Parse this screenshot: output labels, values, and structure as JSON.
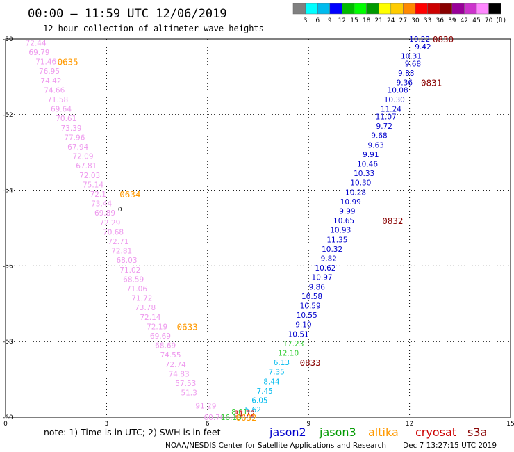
{
  "header": {
    "title": "00:00 – 11:59 UTC 12/06/2019",
    "subtitle": "12 hour collection of altimeter wave heights"
  },
  "colorbar": {
    "colors": [
      "#808080",
      "#00ffff",
      "#00bbee",
      "#0000ff",
      "#00bb00",
      "#00ff00",
      "#009900",
      "#ffff00",
      "#ffcc00",
      "#ff8800",
      "#ff0000",
      "#cc0000",
      "#880000",
      "#990099",
      "#cc33cc",
      "#ff88ff",
      "#000000"
    ],
    "labels": [
      "3",
      "6",
      "9",
      "12",
      "15",
      "18",
      "21",
      "24",
      "27",
      "30",
      "33",
      "36",
      "39",
      "42",
      "45",
      "70",
      "(ft)"
    ]
  },
  "footer": {
    "note": "note:  1) Time is in UTC;  2) SWH is in feet",
    "credit": "NOAA/NESDIS Center for Satellite Applications and Research",
    "timestamp": "Dec  7 13:27:15 UTC 2019"
  },
  "satellites": [
    {
      "name": "jason2",
      "color": "#0000cc"
    },
    {
      "name": "jason3",
      "color": "#009900"
    },
    {
      "name": "altika",
      "color": "#ff9900"
    },
    {
      "name": "cryosat",
      "color": "#cc0000"
    },
    {
      "name": "s3a",
      "color": "#880000"
    }
  ],
  "chart_data": {
    "type": "scatter",
    "xlim": [
      0,
      15
    ],
    "ylim": [
      -60,
      -50
    ],
    "x_ticks": [
      0,
      3,
      6,
      9,
      12,
      15
    ],
    "y_ticks": [
      -50,
      -52,
      -54,
      -56,
      -58,
      -60
    ],
    "grid": true,
    "point_sets": [
      {
        "color": "#ee99ee",
        "points": [
          [
            0.9,
            -50.1,
            "72.44"
          ],
          [
            1.0,
            -50.35,
            "69.79"
          ],
          [
            1.2,
            -50.6,
            "71.46"
          ],
          [
            1.3,
            -50.85,
            "76.95"
          ],
          [
            1.35,
            -51.1,
            "74.42"
          ],
          [
            1.45,
            -51.35,
            "74.66"
          ],
          [
            1.55,
            -51.6,
            "71.58"
          ],
          [
            1.65,
            -51.85,
            "69.64"
          ],
          [
            1.8,
            -52.1,
            "70.61"
          ],
          [
            1.95,
            -52.35,
            "73.39"
          ],
          [
            2.05,
            -52.6,
            "77.96"
          ],
          [
            2.15,
            -52.85,
            "67.94"
          ],
          [
            2.3,
            -53.1,
            "72.09"
          ],
          [
            2.4,
            -53.35,
            "67.81"
          ],
          [
            2.5,
            -53.6,
            "72.03"
          ],
          [
            2.6,
            -53.85,
            "75.14"
          ],
          [
            2.75,
            -54.1,
            "72.1"
          ],
          [
            2.85,
            -54.35,
            "73.44"
          ],
          [
            2.95,
            -54.6,
            "69.89"
          ],
          [
            3.1,
            -54.85,
            "72.29"
          ],
          [
            3.2,
            -55.1,
            "70.68"
          ],
          [
            3.35,
            -55.35,
            "72.71"
          ],
          [
            3.45,
            -55.6,
            "72.81"
          ],
          [
            3.6,
            -55.85,
            "68.03"
          ],
          [
            3.7,
            -56.1,
            "71.02"
          ],
          [
            3.8,
            -56.35,
            "68.59"
          ],
          [
            3.9,
            -56.6,
            "71.06"
          ],
          [
            4.05,
            -56.85,
            "71.72"
          ],
          [
            4.15,
            -57.1,
            "73.78"
          ],
          [
            4.3,
            -57.35,
            "72.14"
          ],
          [
            4.5,
            -57.6,
            "72.19"
          ],
          [
            4.6,
            -57.85,
            "69.69"
          ],
          [
            4.75,
            -58.1,
            "68.69"
          ],
          [
            4.9,
            -58.35,
            "74.55"
          ],
          [
            5.05,
            -58.6,
            "72.74"
          ],
          [
            5.15,
            -58.85,
            "74.83"
          ],
          [
            5.35,
            -59.1,
            "57.53"
          ],
          [
            5.45,
            -59.35,
            "51.3"
          ],
          [
            5.95,
            -59.7,
            "91.29"
          ],
          [
            6.2,
            -60.0,
            "60.70"
          ]
        ]
      },
      {
        "color": "#0000cc",
        "points": [
          [
            12.3,
            -50.0,
            "10.22"
          ],
          [
            12.4,
            -50.2,
            "9.42"
          ],
          [
            12.05,
            -50.45,
            "10.31"
          ],
          [
            12.1,
            -50.65,
            "9.68"
          ],
          [
            11.9,
            -50.9,
            "9.88"
          ],
          [
            11.85,
            -51.15,
            "9.36"
          ],
          [
            11.65,
            -51.35,
            "10.08"
          ],
          [
            11.55,
            -51.6,
            "10.30"
          ],
          [
            11.45,
            -51.85,
            "11.24"
          ],
          [
            11.3,
            -52.05,
            "11.07"
          ],
          [
            11.25,
            -52.3,
            "9.72"
          ],
          [
            11.1,
            -52.55,
            "9.68"
          ],
          [
            11.0,
            -52.8,
            "9.63"
          ],
          [
            10.85,
            -53.05,
            "9.91"
          ],
          [
            10.75,
            -53.3,
            "10.46"
          ],
          [
            10.65,
            -53.55,
            "10.33"
          ],
          [
            10.55,
            -53.8,
            "10.30"
          ],
          [
            10.4,
            -54.05,
            "10.28"
          ],
          [
            10.25,
            -54.3,
            "10.99"
          ],
          [
            10.15,
            -54.55,
            "9.99"
          ],
          [
            10.05,
            -54.8,
            "10.65"
          ],
          [
            9.95,
            -55.05,
            "10.93"
          ],
          [
            9.85,
            -55.3,
            "11.35"
          ],
          [
            9.7,
            -55.55,
            "10.32"
          ],
          [
            9.6,
            -55.8,
            "9.82"
          ],
          [
            9.5,
            -56.05,
            "10.62"
          ],
          [
            9.4,
            -56.3,
            "10.97"
          ],
          [
            9.25,
            -56.55,
            "9.86"
          ],
          [
            9.1,
            -56.8,
            "10.58"
          ],
          [
            9.05,
            -57.05,
            "10.59"
          ],
          [
            8.95,
            -57.3,
            "10.55"
          ],
          [
            8.85,
            -57.55,
            "9.10"
          ],
          [
            8.7,
            -57.8,
            "10.51"
          ]
        ]
      },
      {
        "color": "#33cc33",
        "points": [
          [
            8.55,
            -58.05,
            "17.23"
          ],
          [
            8.4,
            -58.3,
            "12.10"
          ],
          [
            6.95,
            -59.85,
            "8.01"
          ],
          [
            6.7,
            -60.0,
            "16.18"
          ]
        ]
      },
      {
        "color": "#00bbee",
        "points": [
          [
            8.2,
            -58.55,
            "6.13"
          ],
          [
            8.05,
            -58.8,
            "7.35"
          ],
          [
            7.9,
            -59.05,
            "8.44"
          ],
          [
            7.7,
            -59.3,
            "7.45"
          ],
          [
            7.55,
            -59.55,
            "6.05"
          ],
          [
            7.35,
            -59.8,
            "5.62"
          ]
        ]
      },
      {
        "color": "#cc0000",
        "points": [
          [
            7.1,
            -59.9,
            "31.72"
          ]
        ]
      }
    ],
    "pass_labels": [
      {
        "text": "0635",
        "x": 1.85,
        "y": -50.6,
        "color": "#ff9900"
      },
      {
        "text": "0634",
        "x": 3.7,
        "y": -54.1,
        "color": "#ff9900"
      },
      {
        "text": "0633",
        "x": 5.4,
        "y": -57.6,
        "color": "#ff9900"
      },
      {
        "text": "0632",
        "x": 7.15,
        "y": -60.0,
        "color": "#ff9900"
      },
      {
        "text": "0830",
        "x": 13.0,
        "y": -50.0,
        "color": "#880000"
      },
      {
        "text": "0831",
        "x": 12.65,
        "y": -51.15,
        "color": "#880000"
      },
      {
        "text": "0832",
        "x": 11.5,
        "y": -54.8,
        "color": "#880000"
      },
      {
        "text": "0833",
        "x": 9.05,
        "y": -58.55,
        "color": "#880000"
      }
    ],
    "markers": [
      {
        "text": "0",
        "x": 3.4,
        "y": -54.5,
        "color": "#000000"
      }
    ]
  }
}
